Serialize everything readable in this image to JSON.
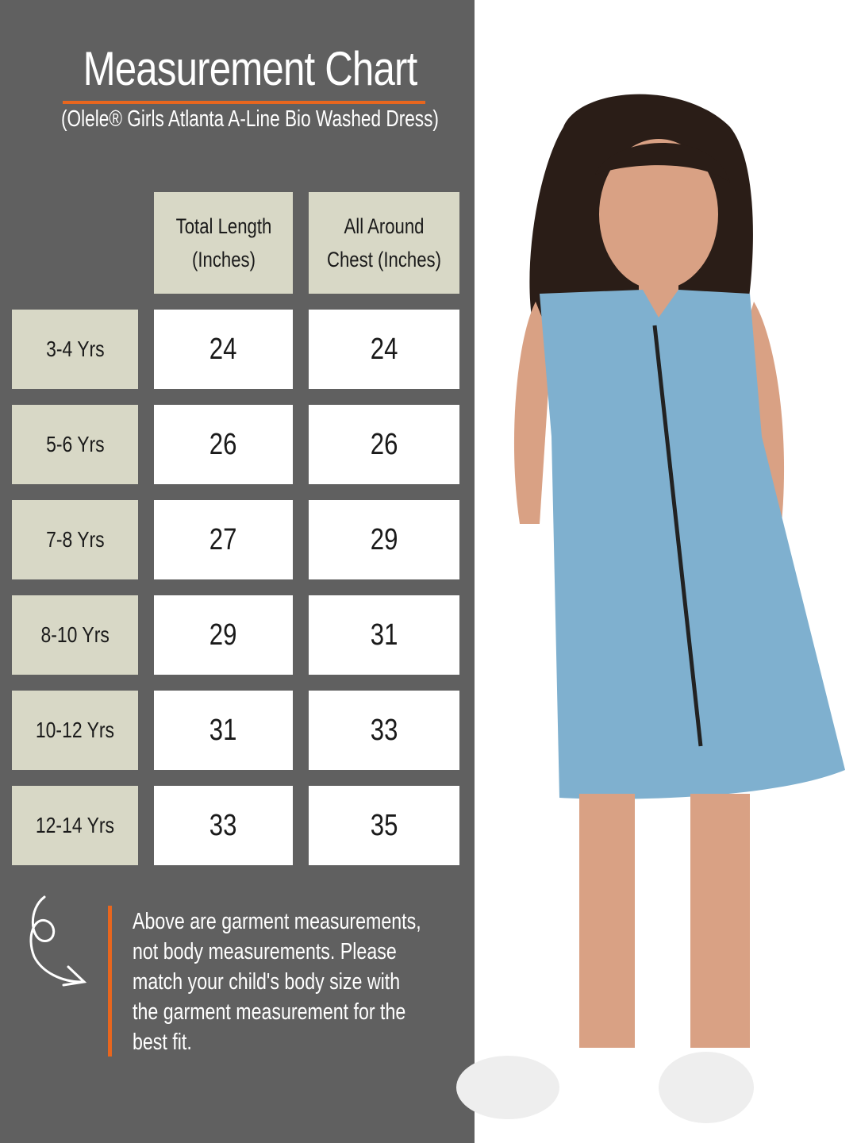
{
  "header": {
    "title": "Measurement Chart",
    "subtitle": "(Olele® Girls Atlanta A-Line Bio Washed Dress)"
  },
  "table": {
    "columns": [
      "Total Length (Inches)",
      "All Around Chest (Inches)"
    ],
    "rows": [
      {
        "size": "3-4 Yrs",
        "length": "24",
        "chest": "24"
      },
      {
        "size": "5-6 Yrs",
        "length": "26",
        "chest": "26"
      },
      {
        "size": "7-8 Yrs",
        "length": "27",
        "chest": "29"
      },
      {
        "size": "8-10 Yrs",
        "length": "29",
        "chest": "31"
      },
      {
        "size": "10-12 Yrs",
        "length": "31",
        "chest": "33"
      },
      {
        "size": "12-14 Yrs",
        "length": "33",
        "chest": "35"
      }
    ]
  },
  "note": {
    "text": "Above are garment measurements, not body measurements. Please match your child's body size with the garment measurement for the best fit.",
    "icon": "curly-arrow-icon"
  },
  "colors": {
    "panel": "#606060",
    "accent": "#e8661e",
    "cell_header": "#d8d8c6",
    "dress": "#7fb0cf"
  }
}
